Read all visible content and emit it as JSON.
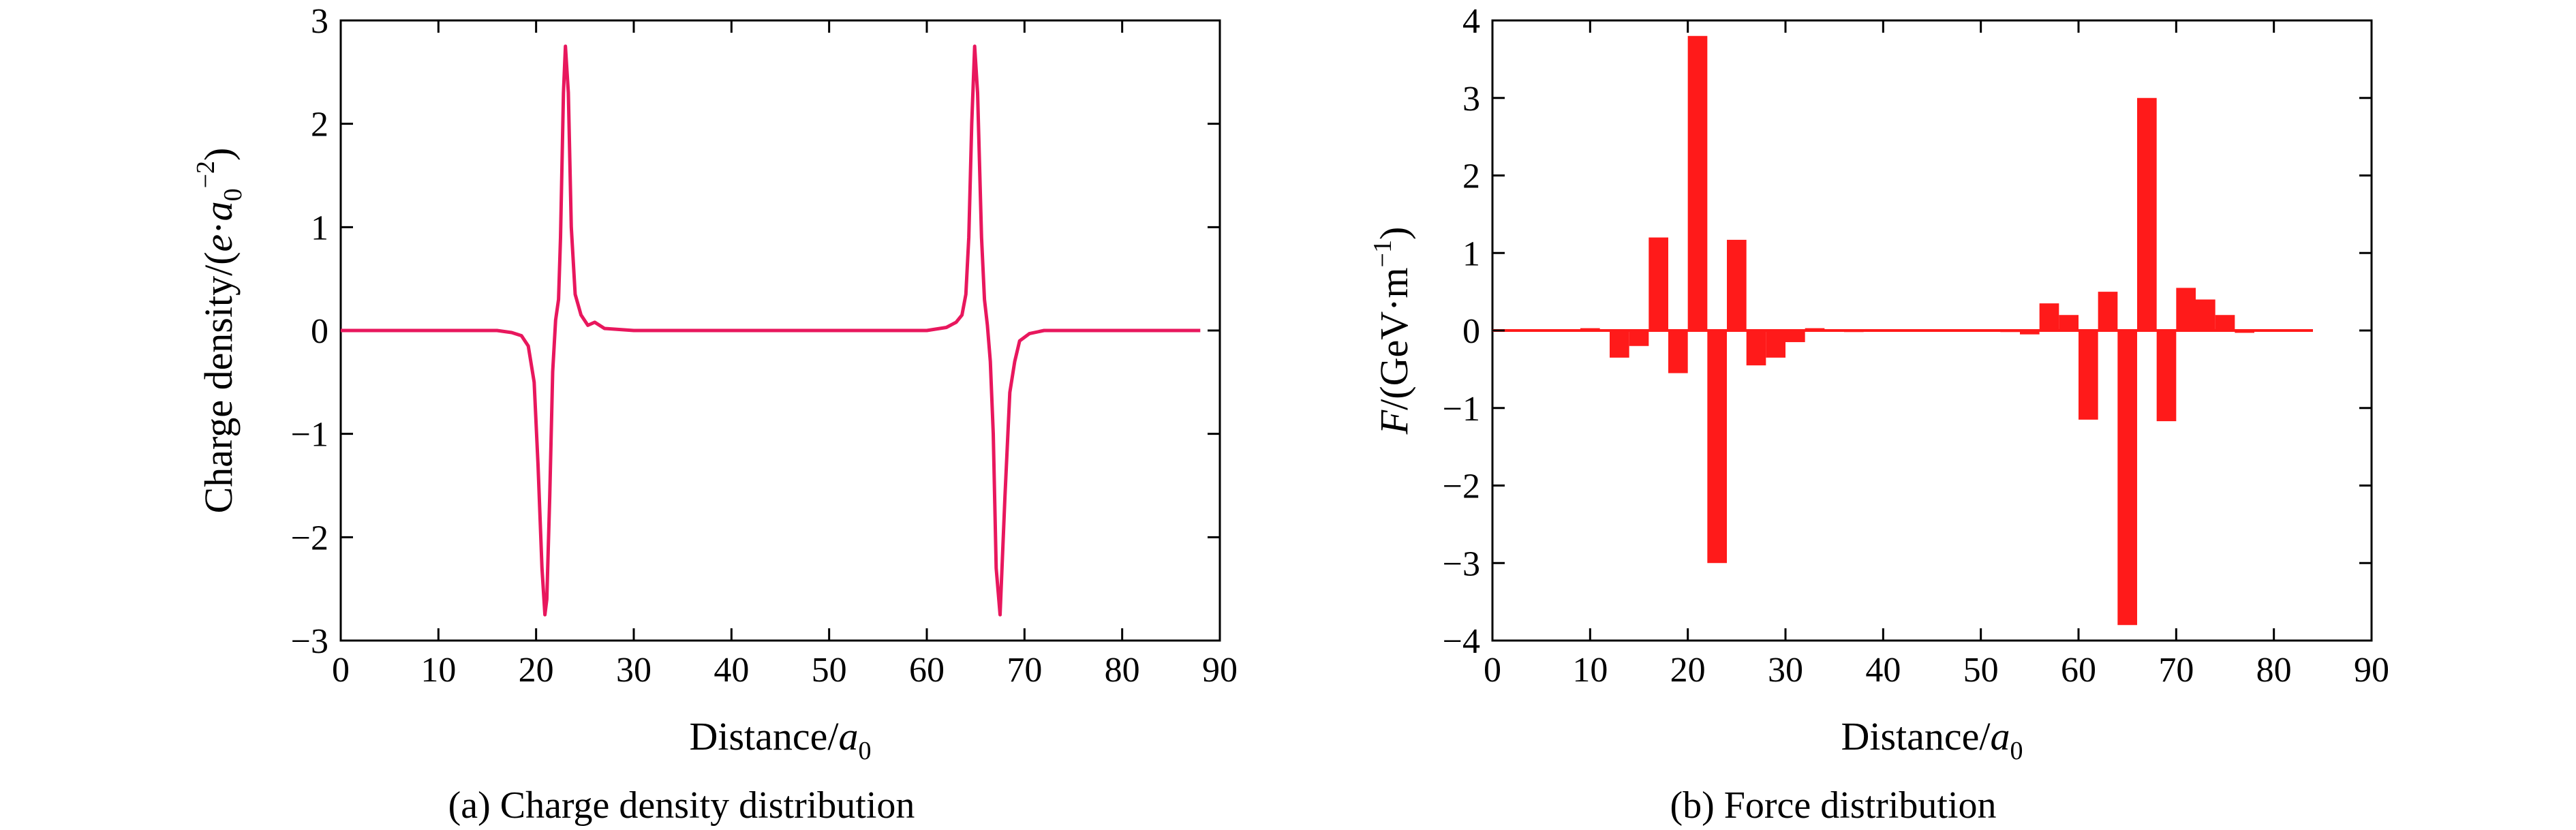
{
  "chart_data": [
    {
      "type": "line",
      "caption": "(a) Charge density distribution",
      "xlabel": {
        "text": "Distance/",
        "var": "a",
        "sub": "0"
      },
      "ylabel": {
        "pre": "Charge density/(",
        "e": "e",
        "dot": "·",
        "a": "a",
        "sub": "0",
        "sup": "−2",
        "post": ")"
      },
      "xlim": [
        0,
        90
      ],
      "ylim": [
        -3,
        3
      ],
      "xticks": [
        "0",
        "10",
        "20",
        "30",
        "40",
        "50",
        "60",
        "70",
        "80",
        "90"
      ],
      "yticks": [
        "−3",
        "−2",
        "−1",
        "0",
        "1",
        "2",
        "3"
      ],
      "grid": false,
      "color": "#e8175d",
      "series": [
        {
          "x": [
            0,
            16,
            17.5,
            18.5,
            19.2,
            19.8,
            20.2,
            20.6,
            20.9,
            21.1,
            21.4,
            21.7,
            22.0,
            22.3,
            22.5,
            22.8,
            23.0,
            23.3,
            23.6,
            24.0,
            24.6,
            25.3,
            26.0,
            27.0,
            30,
            40,
            50,
            60,
            62.0,
            63.0,
            63.6,
            64.0,
            64.3,
            64.6,
            64.9,
            65.2,
            65.6,
            65.9,
            66.2,
            66.5,
            66.8,
            67.1,
            67.5,
            68.0,
            68.5,
            69.0,
            69.5,
            70.5,
            72,
            80,
            88
          ],
          "y": [
            0,
            0,
            -0.02,
            -0.05,
            -0.15,
            -0.5,
            -1.3,
            -2.3,
            -2.75,
            -2.6,
            -1.6,
            -0.4,
            0.1,
            0.3,
            0.9,
            2.3,
            2.75,
            2.3,
            1.0,
            0.35,
            0.15,
            0.05,
            0.08,
            0.02,
            0,
            0,
            0,
            0,
            0.03,
            0.08,
            0.15,
            0.35,
            0.9,
            2.0,
            2.75,
            2.3,
            0.9,
            0.3,
            0.05,
            -0.3,
            -1.0,
            -2.3,
            -2.75,
            -1.6,
            -0.6,
            -0.3,
            -0.1,
            -0.03,
            0,
            0,
            0
          ]
        }
      ]
    },
    {
      "type": "bar",
      "caption": "(b) Force distribution",
      "xlabel": {
        "text": "Distance/",
        "var": "a",
        "sub": "0"
      },
      "ylabel": {
        "var": "F",
        "pre": "/(GeV",
        "dot": "·",
        "unit": "m",
        "sup": "−1",
        "post": ")"
      },
      "xlim": [
        0,
        90
      ],
      "ylim": [
        -4,
        4
      ],
      "xticks": [
        "0",
        "10",
        "20",
        "30",
        "40",
        "50",
        "60",
        "70",
        "80",
        "90"
      ],
      "yticks": [
        "−4",
        "−3",
        "−2",
        "−1",
        "0",
        "1",
        "2",
        "3",
        "4"
      ],
      "grid": false,
      "color": "#ff1a1a",
      "bar_width": 2.0,
      "x_range_line": [
        0,
        84
      ],
      "x": [
        10,
        13,
        15,
        17,
        19,
        21,
        23,
        25,
        27,
        29,
        31,
        33,
        37,
        53,
        55,
        57,
        59,
        61,
        63,
        65,
        67,
        69,
        71,
        73,
        75,
        77
      ],
      "values": [
        0.03,
        -0.35,
        -0.2,
        1.2,
        -0.55,
        3.8,
        -3.0,
        1.17,
        -0.45,
        -0.35,
        -0.15,
        0.03,
        -0.02,
        -0.02,
        -0.05,
        0.35,
        0.2,
        -1.15,
        0.5,
        -3.8,
        3.0,
        -1.17,
        0.55,
        0.4,
        0.2,
        -0.03
      ]
    }
  ]
}
